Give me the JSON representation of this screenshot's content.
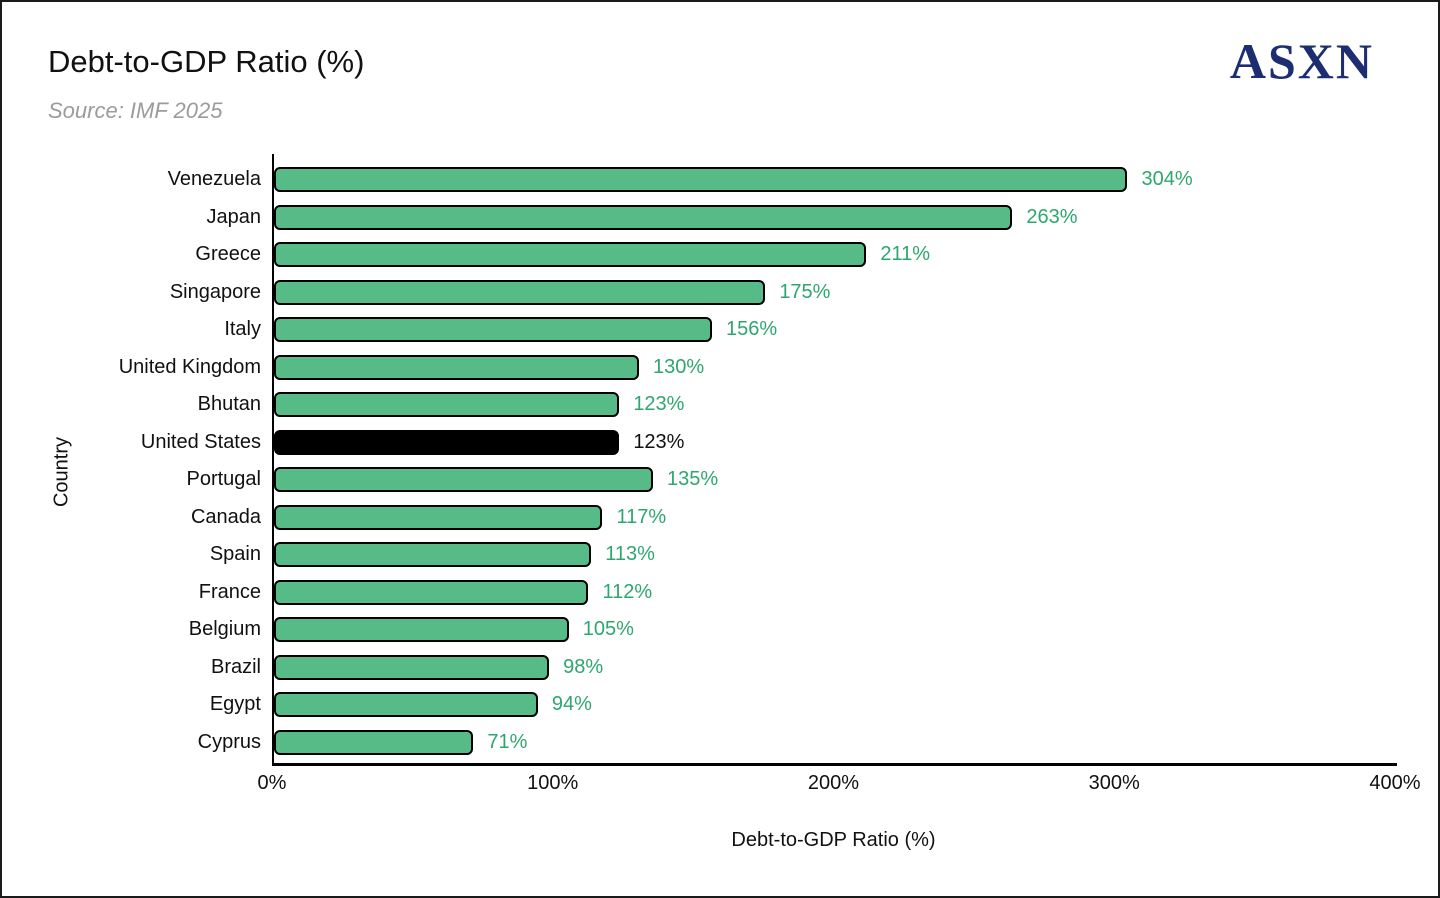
{
  "header": {
    "title": "Debt-to-GDP Ratio (%)",
    "subtitle": "Source: IMF 2025",
    "logo": "ASXN"
  },
  "colors": {
    "bar_fill": "#57bb88",
    "bar_border": "#000000",
    "highlight_fill": "#000000",
    "value_label": "#2ea76f",
    "logo": "#1c2e70",
    "subtitle": "#9b9b9b",
    "text": "#111111"
  },
  "chart_data": {
    "type": "bar",
    "orientation": "horizontal",
    "title": "Debt-to-GDP Ratio (%)",
    "subtitle": "Source: IMF 2025",
    "xlabel": "Debt-to-GDP Ratio (%)",
    "ylabel": "Country",
    "xlim": [
      0,
      400
    ],
    "grid": false,
    "legend": false,
    "x_ticks": [
      {
        "value": 0,
        "label": "0%"
      },
      {
        "value": 100,
        "label": "100%"
      },
      {
        "value": 200,
        "label": "200%"
      },
      {
        "value": 300,
        "label": "300%"
      },
      {
        "value": 400,
        "label": "400%"
      }
    ],
    "categories": [
      "Venezuela",
      "Japan",
      "Greece",
      "Singapore",
      "Italy",
      "United Kingdom",
      "Bhutan",
      "United States",
      "Portugal",
      "Canada",
      "Spain",
      "France",
      "Belgium",
      "Brazil",
      "Egypt",
      "Cyprus"
    ],
    "values": [
      304,
      263,
      211,
      175,
      156,
      130,
      123,
      123,
      135,
      117,
      113,
      112,
      105,
      98,
      94,
      71
    ],
    "value_labels": [
      "304%",
      "263%",
      "211%",
      "175%",
      "156%",
      "130%",
      "123%",
      "123%",
      "135%",
      "117%",
      "113%",
      "112%",
      "105%",
      "98%",
      "94%",
      "71%"
    ],
    "highlighted_category": "United States",
    "highlight_index": 7
  }
}
